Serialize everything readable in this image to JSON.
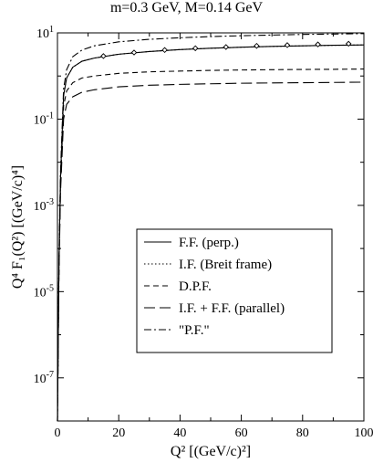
{
  "chart_data": {
    "type": "line",
    "title": "m=0.3 GeV, M=0.14 GeV",
    "xlabel": "Q² [(GeV/c)²]",
    "ylabel": "Q⁴ F₁(Q²) [(GeV/c)⁴]",
    "xlim": [
      0,
      100
    ],
    "ylim": [
      1e-08,
      10
    ],
    "yscale": "log",
    "x_ticks": [
      0,
      20,
      40,
      60,
      80,
      100
    ],
    "x_tick_labels": [
      "0",
      "20",
      "40",
      "60",
      "80",
      "100"
    ],
    "y_ticks": [
      1e-07,
      1e-05,
      0.001,
      0.1,
      10
    ],
    "y_tick_labels": [
      {
        "base": "10",
        "exp": "-7"
      },
      {
        "base": "10",
        "exp": "-5"
      },
      {
        "base": "10",
        "exp": "-3"
      },
      {
        "base": "10",
        "exp": "-1"
      },
      {
        "base": "10",
        "exp": "1"
      }
    ],
    "legend_position": "center-right",
    "series": [
      {
        "name": "F.F. (perp.)",
        "style": "solid",
        "x": [
          0,
          0.5,
          1,
          2,
          3,
          5,
          8,
          12,
          20,
          30,
          40,
          50,
          60,
          70,
          80,
          90,
          100
        ],
        "y": [
          0,
          5e-05,
          0.0045,
          0.35,
          0.9,
          1.6,
          2.2,
          2.6,
          3.2,
          3.7,
          4.1,
          4.4,
          4.65,
          4.85,
          5.0,
          5.15,
          5.25
        ]
      },
      {
        "name": "I.F. (Breit frame)",
        "style": "dotted",
        "x": [
          0,
          0.5,
          1,
          2,
          3,
          5,
          8,
          12,
          20,
          30,
          40,
          50,
          60,
          70,
          80,
          90,
          100
        ],
        "y": [
          0,
          5e-05,
          0.0045,
          0.35,
          0.9,
          1.6,
          2.2,
          2.6,
          3.2,
          3.7,
          4.1,
          4.4,
          4.65,
          4.85,
          5.0,
          5.15,
          5.25
        ]
      },
      {
        "name": "D.P.F.",
        "style": "dashed",
        "x": [
          0,
          0.5,
          1,
          2,
          3,
          5,
          8,
          12,
          20,
          30,
          40,
          50,
          60,
          70,
          80,
          90,
          100
        ],
        "y": [
          0,
          4e-05,
          0.003,
          0.2,
          0.45,
          0.7,
          0.9,
          1.0,
          1.15,
          1.25,
          1.3,
          1.35,
          1.38,
          1.4,
          1.42,
          1.43,
          1.45
        ]
      },
      {
        "name": "I.F. + F.F. (parallel)",
        "style": "longdash",
        "x": [
          0,
          0.5,
          1,
          2,
          3,
          5,
          8,
          12,
          20,
          30,
          40,
          50,
          60,
          70,
          80,
          90,
          100
        ],
        "y": [
          0,
          3e-05,
          0.002,
          0.1,
          0.22,
          0.33,
          0.42,
          0.48,
          0.56,
          0.61,
          0.64,
          0.66,
          0.68,
          0.69,
          0.7,
          0.71,
          0.72
        ]
      },
      {
        "name": "\"P.F.\"",
        "style": "dashdot",
        "x": [
          0,
          0.5,
          1,
          2,
          3,
          5,
          8,
          12,
          20,
          30,
          40,
          50,
          60,
          70,
          80,
          90,
          100
        ],
        "y": [
          0,
          6e-05,
          0.006,
          0.5,
          1.4,
          2.8,
          4.0,
          5.0,
          6.2,
          7.1,
          7.7,
          8.2,
          8.6,
          8.9,
          9.2,
          9.4,
          9.6
        ]
      }
    ],
    "markers": {
      "symbol": "diamond",
      "x": [
        15,
        25,
        35,
        45,
        55,
        65,
        75,
        85,
        95
      ],
      "y": [
        2.9,
        3.5,
        4.0,
        4.4,
        4.7,
        5.0,
        5.2,
        5.4,
        5.6
      ]
    }
  }
}
